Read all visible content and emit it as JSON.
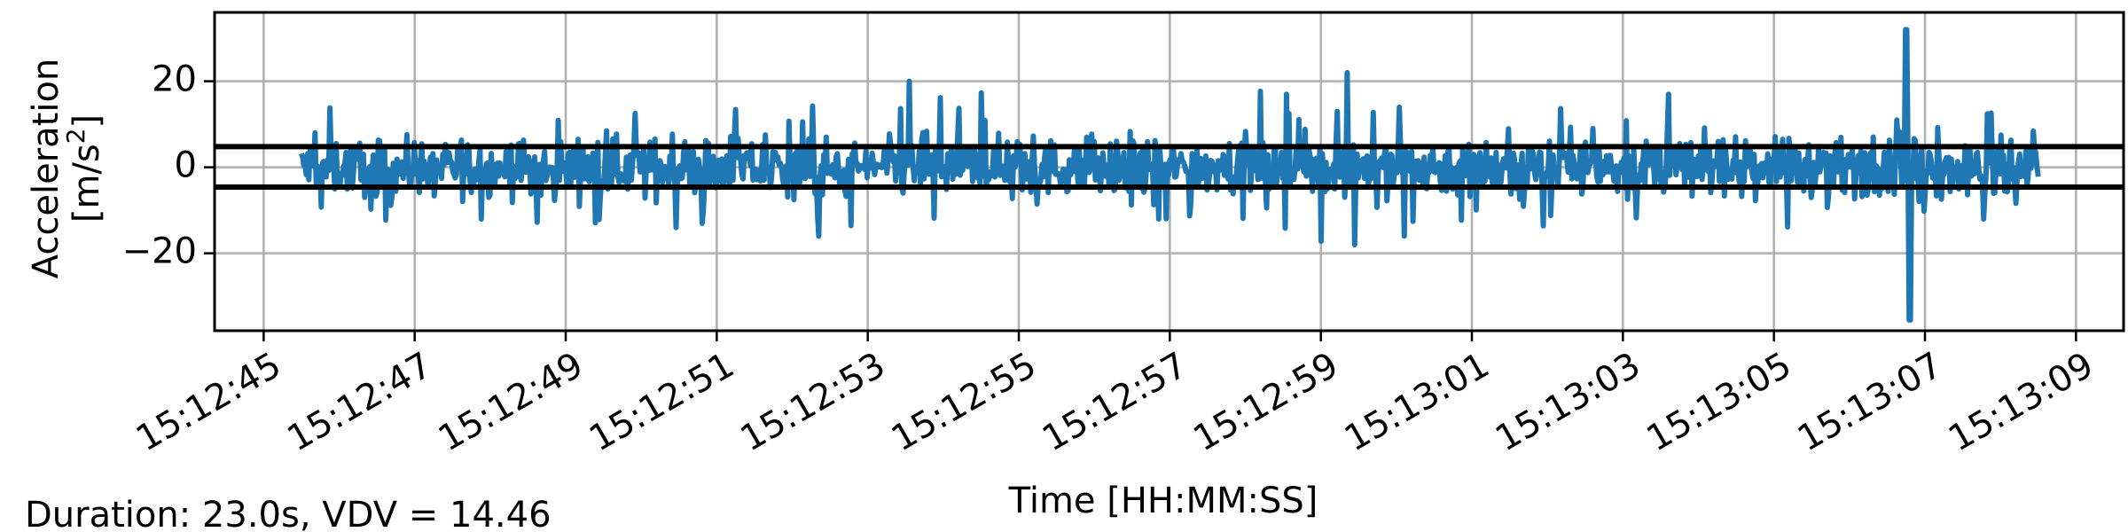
{
  "chart_data": {
    "type": "line",
    "title": "",
    "xlabel": "Time [HH:MM:SS]",
    "ylabel_line1": "Acceleration",
    "ylabel_line2": "[m/s",
    "ylabel_sup": "2",
    "ylabel_close": "]",
    "x_tick_labels": [
      "15:12:45",
      "15:12:47",
      "15:12:49",
      "15:12:51",
      "15:12:53",
      "15:12:55",
      "15:12:57",
      "15:12:59",
      "15:13:01",
      "15:13:03",
      "15:13:05",
      "15:13:07",
      "15:13:09"
    ],
    "y_tick_values": [
      -20,
      0,
      20
    ],
    "y_tick_labels": [
      "−20",
      "0",
      "20"
    ],
    "xlim": [
      "15:12:44.35",
      "15:13:09.63"
    ],
    "ylim": [
      -38,
      36
    ],
    "grid": true,
    "series": [
      {
        "color": "#1f77b4",
        "start": "15:12:45.5",
        "end": "15:13:08.5",
        "min": -35.5,
        "max": 32.0
      }
    ],
    "threshold_lines": [
      4.8,
      -4.6
    ],
    "threshold_color": "#000000",
    "annotation": "Duration: 23.0s, VDV = 14.46"
  }
}
